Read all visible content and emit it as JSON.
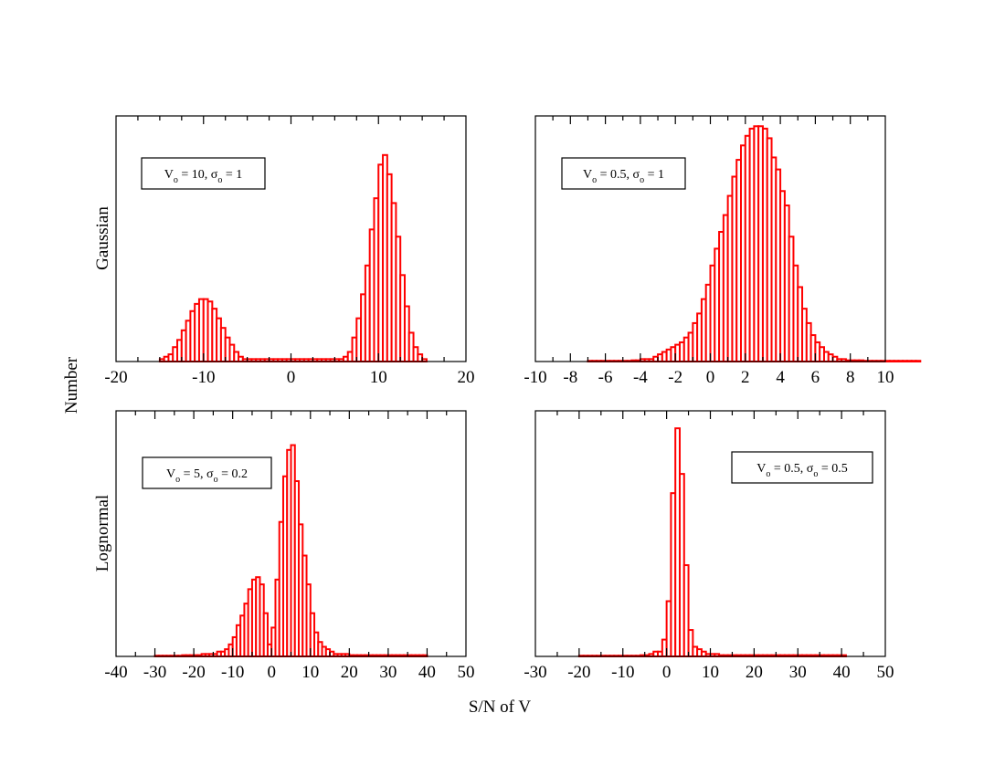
{
  "figure": {
    "xlabel": "S/N of V",
    "ylabel": "Number",
    "row_labels": [
      "Gaussian",
      "Lognormal"
    ]
  },
  "colors": {
    "histogram": "#ff0000",
    "axes": "#000000"
  },
  "chart_data": [
    {
      "type": "bar",
      "panel": "gaussian-left",
      "annotation": {
        "symbol": "V",
        "sub": "o",
        "value": "10",
        "sigma_sub": "o",
        "sigma_value": "1"
      },
      "xlim": [
        -20,
        20
      ],
      "xticks": [
        -20,
        -10,
        0,
        10,
        20
      ],
      "xtick_labels": [
        "-20",
        "-10",
        "0",
        "10",
        "20"
      ],
      "minor_step": 2.5,
      "bin_start": -15,
      "bin_width": 0.5,
      "ymax": 1.0,
      "values": [
        0.01,
        0.02,
        0.03,
        0.06,
        0.09,
        0.13,
        0.17,
        0.21,
        0.24,
        0.26,
        0.26,
        0.25,
        0.22,
        0.18,
        0.14,
        0.1,
        0.07,
        0.04,
        0.02,
        0.01,
        0.01,
        0.01,
        0.01,
        0.01,
        0.01,
        0.01,
        0.01,
        0.01,
        0.01,
        0.01,
        0.01,
        0.01,
        0.01,
        0.01,
        0.01,
        0.01,
        0.01,
        0.01,
        0.01,
        0.01,
        0.01,
        0.01,
        0.02,
        0.04,
        0.1,
        0.18,
        0.28,
        0.4,
        0.55,
        0.68,
        0.82,
        0.86,
        0.78,
        0.66,
        0.52,
        0.36,
        0.23,
        0.12,
        0.06,
        0.03,
        0.01
      ]
    },
    {
      "type": "bar",
      "panel": "gaussian-right",
      "annotation": {
        "symbol": "V",
        "sub": "o",
        "value": "0.5",
        "sigma_sub": "o",
        "sigma_value": "1"
      },
      "xlim": [
        -10,
        10
      ],
      "xticks": [
        -10,
        -8,
        -6,
        -4,
        -2,
        0,
        2,
        4,
        6,
        8,
        10
      ],
      "xtick_labels": [
        "-10",
        "-8",
        "-6",
        "-4",
        "-2",
        "0",
        "2",
        "4",
        "6",
        "8",
        "10"
      ],
      "minor_step": 1,
      "bin_start": -7,
      "bin_width": 0.25,
      "ymax": 1.0,
      "values": [
        0.003,
        0.003,
        0.003,
        0.003,
        0.003,
        0.003,
        0.003,
        0.003,
        0.003,
        0.003,
        0.005,
        0.005,
        0.01,
        0.01,
        0.01,
        0.02,
        0.03,
        0.04,
        0.05,
        0.06,
        0.07,
        0.08,
        0.1,
        0.12,
        0.16,
        0.2,
        0.26,
        0.32,
        0.4,
        0.47,
        0.54,
        0.61,
        0.69,
        0.77,
        0.84,
        0.9,
        0.94,
        0.97,
        0.98,
        0.98,
        0.97,
        0.93,
        0.85,
        0.8,
        0.71,
        0.65,
        0.52,
        0.4,
        0.31,
        0.22,
        0.16,
        0.11,
        0.08,
        0.06,
        0.04,
        0.03,
        0.02,
        0.01,
        0.01,
        0.005,
        0.005,
        0.005,
        0.005,
        0.003,
        0.003,
        0.003,
        0.003,
        0.003,
        0.003,
        0.003,
        0.003,
        0.003,
        0.003,
        0.003,
        0.003,
        0.003
      ]
    },
    {
      "type": "bar",
      "panel": "lognormal-left",
      "annotation": {
        "symbol": "V",
        "sub": "o",
        "value": "5",
        "sigma_sub": "o",
        "sigma_value": "0.2"
      },
      "xlim": [
        -40,
        50
      ],
      "xticks": [
        -40,
        -30,
        -20,
        -10,
        0,
        10,
        20,
        30,
        40,
        50
      ],
      "xtick_labels": [
        "-40",
        "-30",
        "-20",
        "-10",
        "0",
        "10",
        "20",
        "30",
        "40",
        "50"
      ],
      "minor_step": 5,
      "bin_start": -30,
      "bin_width": 1,
      "ymax": 1.0,
      "values": [
        0.003,
        0.003,
        0.003,
        0.003,
        0.003,
        0.003,
        0.003,
        0.005,
        0.005,
        0.005,
        0.005,
        0.005,
        0.01,
        0.01,
        0.01,
        0.01,
        0.02,
        0.02,
        0.03,
        0.05,
        0.08,
        0.13,
        0.17,
        0.22,
        0.28,
        0.32,
        0.33,
        0.3,
        0.18,
        0.05,
        0.12,
        0.32,
        0.56,
        0.75,
        0.86,
        0.88,
        0.73,
        0.55,
        0.42,
        0.3,
        0.18,
        0.1,
        0.06,
        0.04,
        0.03,
        0.02,
        0.01,
        0.01,
        0.01,
        0.01,
        0.005,
        0.005,
        0.005,
        0.005,
        0.005,
        0.005,
        0.005,
        0.005,
        0.005,
        0.005,
        0.005,
        0.005,
        0.005,
        0.005,
        0.005,
        0.005,
        0.005,
        0.005,
        0.005,
        0.005
      ]
    },
    {
      "type": "bar",
      "panel": "lognormal-right",
      "annotation": {
        "symbol": "V",
        "sub": "o",
        "value": "0.5",
        "sigma_sub": "o",
        "sigma_value": "0.5"
      },
      "xlim": [
        -30,
        50
      ],
      "xticks": [
        -30,
        -20,
        -10,
        0,
        10,
        20,
        30,
        40,
        50
      ],
      "xtick_labels": [
        "-30",
        "-20",
        "-10",
        "0",
        "10",
        "20",
        "30",
        "40",
        "50"
      ],
      "minor_step": 5,
      "bin_start": -20,
      "bin_width": 1,
      "ymax": 1.0,
      "values": [
        0.003,
        0.003,
        0.003,
        0.003,
        0.003,
        0.003,
        0.003,
        0.003,
        0.003,
        0.003,
        0.003,
        0.003,
        0.003,
        0.003,
        0.005,
        0.005,
        0.01,
        0.02,
        0.02,
        0.07,
        0.23,
        0.68,
        0.95,
        0.76,
        0.38,
        0.11,
        0.04,
        0.03,
        0.02,
        0.01,
        0.01,
        0.01,
        0.005,
        0.005,
        0.005,
        0.005,
        0.005,
        0.005,
        0.005,
        0.005,
        0.005,
        0.005,
        0.005,
        0.005,
        0.005,
        0.005,
        0.005,
        0.005,
        0.005,
        0.005,
        0.005,
        0.005,
        0.005,
        0.005,
        0.005,
        0.005,
        0.005,
        0.005,
        0.005,
        0.005,
        0.005
      ]
    }
  ]
}
